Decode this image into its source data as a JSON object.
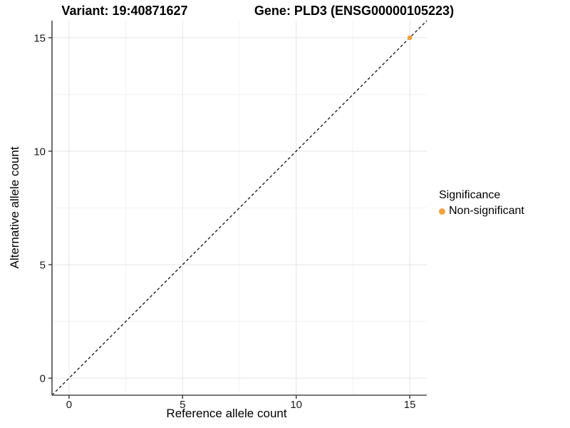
{
  "titles": {
    "variant": "Variant: 19:40871627",
    "gene": "Gene: PLD3 (ENSG00000105223)"
  },
  "colors": {
    "background": "#ffffff",
    "grid_major": "#e4e4e4",
    "grid_minor": "#f2f2f2",
    "axis_line": "#4d4d4d",
    "tick_mark": "#333333",
    "tick_label": "#1a1a1a",
    "text": "#000000",
    "point_orange": "#F9A242",
    "reference_line": "#111111"
  },
  "chart_data": {
    "type": "scatter",
    "title": "Variant: 19:40871627 | Gene: PLD3 (ENSG00000105223)",
    "xlabel": "Reference allele count",
    "ylabel": "Alternative allele count",
    "xlim": [
      -0.75,
      15.75
    ],
    "ylim": [
      -0.75,
      15.75
    ],
    "x_ticks": [
      0,
      5,
      10,
      15
    ],
    "y_ticks": [
      0,
      5,
      10,
      15
    ],
    "x_minor_ticks": [
      2.5,
      7.5,
      12.5
    ],
    "y_minor_ticks": [
      2.5,
      7.5,
      12.5
    ],
    "grid": true,
    "legend": {
      "title": "Significance",
      "position": "right"
    },
    "series": [
      {
        "name": "Non-significant",
        "color": "#F9A242",
        "points": [
          {
            "x": 15,
            "y": 15
          }
        ]
      }
    ],
    "reference_line": {
      "type": "identity",
      "intercept": 0,
      "slope": 1,
      "style": "dashed",
      "color": "#111111"
    }
  }
}
